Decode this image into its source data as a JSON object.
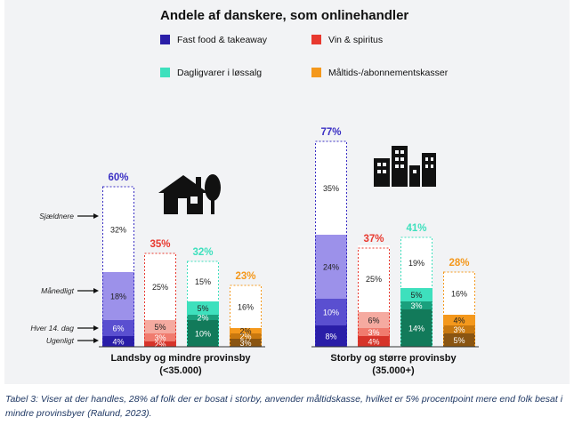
{
  "caption": "Tabel 3: Viser at der handles, 28% af folk der er bosat i storby, anvender måltidskasse, hvilket er 5% procentpoint mere end folk besat i mindre provinsbyer (Ralund, 2023).",
  "chart_data": {
    "type": "bar",
    "title": "Andele af danskere, som onlinehandler",
    "frequency_labels": [
      "Sjældnere",
      "Månedligt",
      "Hver 14. dag",
      "Ugenligt"
    ],
    "legend": [
      {
        "name": "Fast food & takeaway",
        "color": "#2a1ea8"
      },
      {
        "name": "Vin & spiritus",
        "color": "#e8392f"
      },
      {
        "name": "Dagligvarer i løssalg",
        "color": "#3ee0bd"
      },
      {
        "name": "Måltids-/abonnementskasser",
        "color": "#f4981c"
      }
    ],
    "groups": [
      {
        "label_line1": "Landsby og mindre provinsby",
        "label_line2": "(<35.000)",
        "icon": "house-icon",
        "bars": [
          {
            "category": "Fast food & takeaway",
            "total_label": "60%",
            "total": 60,
            "segments": [
              {
                "level": "Ugenligt",
                "value": 4,
                "label": "4%"
              },
              {
                "level": "Hver 14. dag",
                "value": 6,
                "label": "6%"
              },
              {
                "level": "Månedligt",
                "value": 18,
                "label": "18%"
              },
              {
                "level": "Sjældnere",
                "value": 32,
                "label": "32%"
              }
            ]
          },
          {
            "category": "Vin & spiritus",
            "total_label": "35%",
            "total": 35,
            "segments": [
              {
                "level": "Ugenligt",
                "value": 2,
                "label": "2%"
              },
              {
                "level": "Hver 14. dag",
                "value": 3,
                "label": "3%"
              },
              {
                "level": "Månedligt",
                "value": 5,
                "label": "5%"
              },
              {
                "level": "Sjældnere",
                "value": 25,
                "label": "25%"
              }
            ]
          },
          {
            "category": "Dagligvarer i løssalg",
            "total_label": "32%",
            "total": 32,
            "segments": [
              {
                "level": "Ugenligt",
                "value": 10,
                "label": "10%"
              },
              {
                "level": "Hver 14. dag",
                "value": 2,
                "label": "2%"
              },
              {
                "level": "Månedligt",
                "value": 5,
                "label": "5%"
              },
              {
                "level": "Sjældnere",
                "value": 15,
                "label": "15%"
              }
            ]
          },
          {
            "category": "Måltids-/abonnementskasser",
            "total_label": "23%",
            "total": 23,
            "segments": [
              {
                "level": "Ugenligt",
                "value": 3,
                "label": "3%"
              },
              {
                "level": "Hver 14. dag",
                "value": 2,
                "label": "2%"
              },
              {
                "level": "Månedligt",
                "value": 2,
                "label": "2%"
              },
              {
                "level": "Sjældnere",
                "value": 16,
                "label": "16%"
              }
            ]
          }
        ]
      },
      {
        "label_line1": "Storby og større provinsby",
        "label_line2": "(35.000+)",
        "icon": "city-buildings-icon",
        "bars": [
          {
            "category": "Fast food & takeaway",
            "total_label": "77%",
            "total": 77,
            "segments": [
              {
                "level": "Ugenligt",
                "value": 8,
                "label": "8%"
              },
              {
                "level": "Hver 14. dag",
                "value": 10,
                "label": "10%"
              },
              {
                "level": "Månedligt",
                "value": 24,
                "label": "24%"
              },
              {
                "level": "Sjældnere",
                "value": 35,
                "label": "35%"
              }
            ]
          },
          {
            "category": "Vin & spiritus",
            "total_label": "37%",
            "total": 37,
            "segments": [
              {
                "level": "Ugenligt",
                "value": 4,
                "label": "4%"
              },
              {
                "level": "Hver 14. dag",
                "value": 3,
                "label": "3%"
              },
              {
                "level": "Månedligt",
                "value": 6,
                "label": "6%"
              },
              {
                "level": "Sjældnere",
                "value": 25,
                "label": "25%"
              }
            ]
          },
          {
            "category": "Dagligvarer i løssalg",
            "total_label": "41%",
            "total": 41,
            "segments": [
              {
                "level": "Ugenligt",
                "value": 14,
                "label": "14%"
              },
              {
                "level": "Hver 14. dag",
                "value": 3,
                "label": "3%"
              },
              {
                "level": "Månedligt",
                "value": 5,
                "label": "5%"
              },
              {
                "level": "Sjældnere",
                "value": 19,
                "label": "19%"
              }
            ]
          },
          {
            "category": "Måltids-/abonnementskasser",
            "total_label": "28%",
            "total": 28,
            "segments": [
              {
                "level": "Ugenligt",
                "value": 5,
                "label": "5%"
              },
              {
                "level": "Hver 14. dag",
                "value": 3,
                "label": "3%"
              },
              {
                "level": "Månedligt",
                "value": 4,
                "label": "4%"
              },
              {
                "level": "Sjældnere",
                "value": 16,
                "label": "16%"
              }
            ]
          }
        ]
      }
    ],
    "colors": {
      "Fast food & takeaway": [
        "#2a1ea8",
        "#5a4fd0",
        "#9c91ea",
        "#ffffff"
      ],
      "Vin & spiritus": [
        "#d6342a",
        "#f07b6e",
        "#f5aaa0",
        "#ffffff"
      ],
      "Dagligvarer i løssalg": [
        "#127a5a",
        "#1aa07d",
        "#3ee0bd",
        "#ffffff"
      ],
      "Måltids-/abonnementskasser": [
        "#8a5512",
        "#c8780f",
        "#f4981c",
        "#ffffff"
      ]
    },
    "total_label_colors": {
      "Fast food & takeaway": "#3a2fc4",
      "Vin & spiritus": "#e8392f",
      "Dagligvarer i løssalg": "#3ee0bd",
      "Måltids-/abonnementskasser": "#f4981c"
    }
  }
}
